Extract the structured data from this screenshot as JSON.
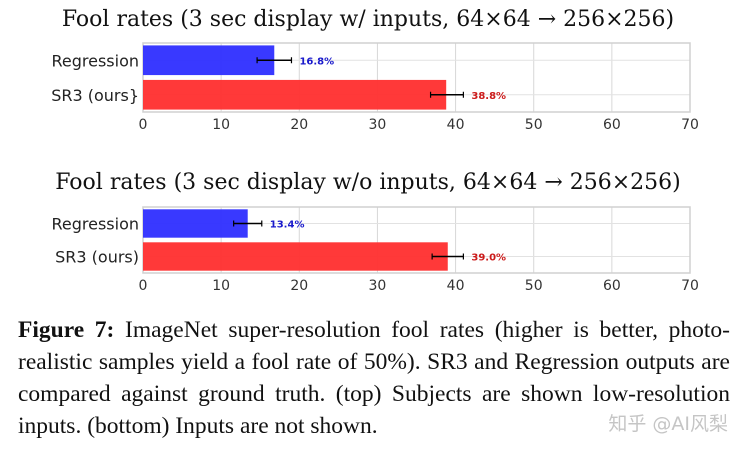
{
  "chart_data": [
    {
      "type": "bar",
      "orientation": "horizontal",
      "title": "Fool rates (3 sec display w/ inputs, 64×64 → 256×256)",
      "categories": [
        "Regression",
        "SR3 (ours}"
      ],
      "values": [
        16.8,
        38.8
      ],
      "error": [
        [
          14.6,
          19.0
        ],
        [
          36.8,
          41.0
        ]
      ],
      "data_labels": [
        "16.8%",
        "38.8%"
      ],
      "colors": [
        "#3333ff",
        "#ff3333"
      ],
      "label_colors": [
        "#1a1acc",
        "#cc1a1a"
      ],
      "xlim": [
        0,
        70
      ],
      "xticks": [
        0,
        10,
        20,
        30,
        40,
        50,
        60,
        70
      ],
      "grid": true
    },
    {
      "type": "bar",
      "orientation": "horizontal",
      "title": "Fool rates (3 sec display w/o inputs, 64×64 → 256×256)",
      "categories": [
        "Regression",
        "SR3 (ours)"
      ],
      "values": [
        13.4,
        39.0
      ],
      "error": [
        [
          11.6,
          15.2
        ],
        [
          37.0,
          41.0
        ]
      ],
      "data_labels": [
        "13.4%",
        "39.0%"
      ],
      "colors": [
        "#3333ff",
        "#ff3333"
      ],
      "label_colors": [
        "#1a1acc",
        "#cc1a1a"
      ],
      "xlim": [
        0,
        70
      ],
      "xticks": [
        0,
        10,
        20,
        30,
        40,
        50,
        60,
        70
      ],
      "grid": true
    }
  ],
  "caption": {
    "label": "Figure 7:",
    "text": " ImageNet super-resolution fool rates (higher is better, photo-realistic samples yield a fool rate of 50%). SR3 and Regression outputs are compared against ground truth. (top) Subjects are shown low-resolution inputs. (bottom) Inputs are not shown."
  },
  "watermark": "知乎 @AI风梨"
}
